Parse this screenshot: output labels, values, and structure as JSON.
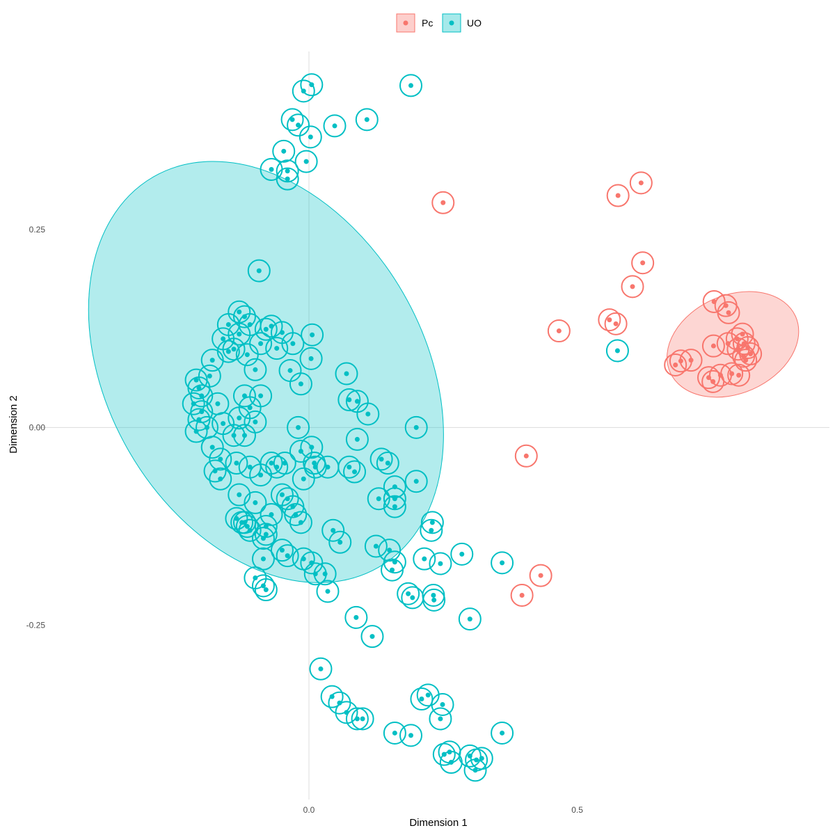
{
  "chart_data": {
    "type": "scatter",
    "xlabel": "Dimension 1",
    "ylabel": "Dimension 2",
    "xlim": [
      -0.52,
      0.97
    ],
    "ylim": [
      -0.47,
      0.475
    ],
    "xticks": [
      {
        "value": 0.0,
        "label": "0.0"
      },
      {
        "value": 0.5,
        "label": "0.5"
      }
    ],
    "yticks": [
      {
        "value": 0.25,
        "label": "0.25"
      },
      {
        "value": 0.0,
        "label": "0.00"
      },
      {
        "value": -0.25,
        "label": "-0.25"
      }
    ],
    "grid": "zero-lines-only",
    "legend_position": "top",
    "legend": [
      {
        "label": "Pc",
        "color": "#F8766D"
      },
      {
        "label": "UO",
        "color": "#00BFC4"
      }
    ],
    "ellipses": [
      {
        "group": "UO",
        "color": "#00BFC4",
        "center": [
          -0.08,
          0.07
        ],
        "semi_axes": [
          0.42,
          0.2
        ],
        "rotation_deg": 60
      },
      {
        "group": "Pc",
        "color": "#F8766D",
        "center": [
          0.79,
          0.105
        ],
        "semi_axes": [
          0.128,
          0.062
        ],
        "rotation_deg": -24
      }
    ],
    "series": [
      {
        "name": "Pc",
        "color": "#F8766D",
        "points": [
          [
            0.25,
            0.284
          ],
          [
            0.576,
            0.293
          ],
          [
            0.619,
            0.309
          ],
          [
            0.622,
            0.208
          ],
          [
            0.603,
            0.178
          ],
          [
            0.466,
            0.122
          ],
          [
            0.56,
            0.136
          ],
          [
            0.572,
            0.131
          ],
          [
            0.755,
            0.159
          ],
          [
            0.777,
            0.154
          ],
          [
            0.782,
            0.145
          ],
          [
            0.754,
            0.103
          ],
          [
            0.781,
            0.106
          ],
          [
            0.798,
            0.112
          ],
          [
            0.8,
            0.099
          ],
          [
            0.808,
            0.118
          ],
          [
            0.811,
            0.106
          ],
          [
            0.818,
            0.101
          ],
          [
            0.823,
            0.093
          ],
          [
            0.814,
            0.085
          ],
          [
            0.81,
            0.09
          ],
          [
            0.683,
            0.079
          ],
          [
            0.693,
            0.084
          ],
          [
            0.712,
            0.085
          ],
          [
            0.745,
            0.063
          ],
          [
            0.753,
            0.058
          ],
          [
            0.767,
            0.066
          ],
          [
            0.788,
            0.068
          ],
          [
            0.801,
            0.066
          ],
          [
            0.405,
            -0.036
          ],
          [
            0.397,
            -0.212
          ],
          [
            0.432,
            -0.187
          ]
        ]
      },
      {
        "name": "UO",
        "color": "#00BFC4",
        "points": [
          [
            0.005,
            0.433
          ],
          [
            -0.01,
            0.425
          ],
          [
            0.19,
            0.432
          ],
          [
            -0.031,
            0.389
          ],
          [
            -0.02,
            0.382
          ],
          [
            0.048,
            0.381
          ],
          [
            0.108,
            0.389
          ],
          [
            0.003,
            0.367
          ],
          [
            -0.047,
            0.349
          ],
          [
            -0.07,
            0.326
          ],
          [
            -0.04,
            0.324
          ],
          [
            -0.005,
            0.336
          ],
          [
            -0.04,
            0.314
          ],
          [
            0.575,
            0.097
          ],
          [
            -0.093,
            0.198
          ],
          [
            -0.13,
            0.146
          ],
          [
            -0.12,
            0.14
          ],
          [
            -0.15,
            0.13
          ],
          [
            -0.16,
            0.112
          ],
          [
            -0.13,
            0.118
          ],
          [
            -0.11,
            0.13
          ],
          [
            -0.08,
            0.124
          ],
          [
            -0.07,
            0.128
          ],
          [
            -0.05,
            0.12
          ],
          [
            0.006,
            0.117
          ],
          [
            -0.03,
            0.106
          ],
          [
            -0.06,
            0.1
          ],
          [
            -0.09,
            0.106
          ],
          [
            -0.14,
            0.099
          ],
          [
            -0.15,
            0.096
          ],
          [
            -0.115,
            0.092
          ],
          [
            -0.18,
            0.085
          ],
          [
            -0.1,
            0.073
          ],
          [
            0.004,
            0.087
          ],
          [
            -0.035,
            0.072
          ],
          [
            -0.015,
            0.055
          ],
          [
            0.07,
            0.068
          ],
          [
            0.075,
            0.035
          ],
          [
            0.09,
            0.033
          ],
          [
            0.11,
            0.017
          ],
          [
            -0.09,
            0.04
          ],
          [
            -0.12,
            0.04
          ],
          [
            -0.11,
            0.025
          ],
          [
            -0.13,
            0.012
          ],
          [
            -0.21,
            0.06
          ],
          [
            -0.205,
            0.05
          ],
          [
            -0.2,
            0.04
          ],
          [
            -0.215,
            0.03
          ],
          [
            -0.2,
            0.02
          ],
          [
            -0.205,
            0.01
          ],
          [
            -0.19,
            0.0
          ],
          [
            -0.21,
            -0.005
          ],
          [
            -0.185,
            0.065
          ],
          [
            -0.17,
            0.03
          ],
          [
            -0.16,
            0.005
          ],
          [
            -0.14,
            -0.01
          ],
          [
            -0.12,
            -0.01
          ],
          [
            -0.1,
            0.007
          ],
          [
            -0.02,
            0.0
          ],
          [
            0.09,
            -0.015
          ],
          [
            -0.18,
            -0.025
          ],
          [
            -0.165,
            -0.04
          ],
          [
            -0.175,
            -0.055
          ],
          [
            -0.165,
            -0.065
          ],
          [
            -0.135,
            -0.045
          ],
          [
            -0.11,
            -0.05
          ],
          [
            -0.09,
            -0.06
          ],
          [
            -0.07,
            -0.045
          ],
          [
            -0.06,
            -0.05
          ],
          [
            -0.045,
            -0.045
          ],
          [
            -0.015,
            -0.03
          ],
          [
            0.005,
            -0.025
          ],
          [
            0.01,
            -0.045
          ],
          [
            0.012,
            -0.05
          ],
          [
            -0.01,
            -0.065
          ],
          [
            0.035,
            -0.05
          ],
          [
            0.075,
            -0.05
          ],
          [
            0.085,
            -0.056
          ],
          [
            0.135,
            -0.04
          ],
          [
            0.147,
            -0.045
          ],
          [
            0.2,
            -0.068
          ],
          [
            -0.13,
            -0.085
          ],
          [
            -0.1,
            -0.095
          ],
          [
            -0.05,
            -0.085
          ],
          [
            -0.04,
            -0.09
          ],
          [
            -0.03,
            -0.1
          ],
          [
            -0.07,
            -0.11
          ],
          [
            -0.025,
            -0.11
          ],
          [
            -0.015,
            -0.12
          ],
          [
            -0.135,
            -0.115
          ],
          [
            -0.125,
            -0.12
          ],
          [
            -0.12,
            -0.12
          ],
          [
            -0.115,
            -0.125
          ],
          [
            -0.11,
            -0.13
          ],
          [
            -0.08,
            -0.125
          ],
          [
            -0.08,
            -0.135
          ],
          [
            -0.085,
            -0.14
          ],
          [
            0.045,
            -0.13
          ],
          [
            0.058,
            -0.145
          ],
          [
            0.13,
            -0.09
          ],
          [
            0.16,
            -0.075
          ],
          [
            0.16,
            -0.09
          ],
          [
            0.16,
            -0.1
          ],
          [
            0.23,
            -0.12
          ],
          [
            0.228,
            -0.13
          ],
          [
            -0.05,
            -0.155
          ],
          [
            -0.04,
            -0.162
          ],
          [
            -0.01,
            -0.166
          ],
          [
            0.005,
            -0.171
          ],
          [
            0.012,
            -0.185
          ],
          [
            0.03,
            -0.185
          ],
          [
            -0.085,
            -0.166
          ],
          [
            0.125,
            -0.15
          ],
          [
            0.15,
            -0.155
          ],
          [
            0.16,
            -0.17
          ],
          [
            0.155,
            -0.18
          ],
          [
            0.215,
            -0.166
          ],
          [
            0.245,
            -0.172
          ],
          [
            0.285,
            -0.16
          ],
          [
            0.36,
            -0.171
          ],
          [
            -0.1,
            -0.19
          ],
          [
            -0.085,
            -0.2
          ],
          [
            -0.08,
            -0.205
          ],
          [
            0.035,
            -0.207
          ],
          [
            0.185,
            -0.21
          ],
          [
            0.193,
            -0.215
          ],
          [
            0.232,
            -0.212
          ],
          [
            0.233,
            -0.218
          ],
          [
            0.3,
            -0.242
          ],
          [
            0.088,
            -0.24
          ],
          [
            0.118,
            -0.264
          ],
          [
            0.022,
            -0.305
          ],
          [
            0.043,
            -0.34
          ],
          [
            0.057,
            -0.348
          ],
          [
            0.07,
            -0.36
          ],
          [
            0.09,
            -0.368
          ],
          [
            0.1,
            -0.368
          ],
          [
            0.21,
            -0.343
          ],
          [
            0.222,
            -0.338
          ],
          [
            0.249,
            -0.35
          ],
          [
            0.245,
            -0.368
          ],
          [
            0.16,
            -0.386
          ],
          [
            0.19,
            -0.389
          ],
          [
            0.36,
            -0.386
          ],
          [
            0.252,
            -0.413
          ],
          [
            0.262,
            -0.41
          ],
          [
            0.265,
            -0.423
          ],
          [
            0.3,
            -0.415
          ],
          [
            0.312,
            -0.42
          ],
          [
            0.322,
            -0.418
          ],
          [
            0.31,
            -0.433
          ],
          [
            0.2,
            0.0
          ]
        ]
      }
    ]
  }
}
